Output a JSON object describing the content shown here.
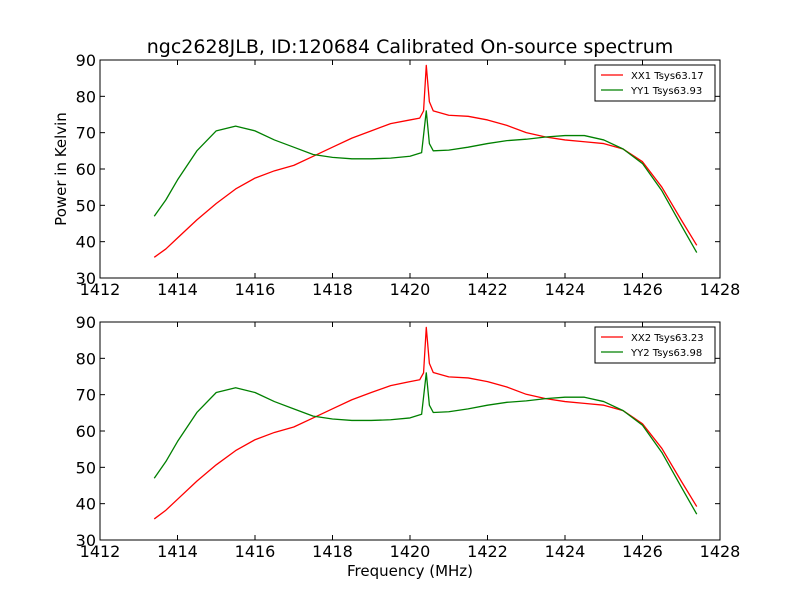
{
  "figure": {
    "title": "ngc2628JLB, ID:120684 Calibrated On-source spectrum"
  },
  "chart_data": [
    {
      "type": "line",
      "ylabel": "Power in Kelvin",
      "xlabel": "",
      "xlim": [
        1412,
        1428
      ],
      "ylim": [
        30,
        90
      ],
      "xticks": [
        "1412",
        "1414",
        "1416",
        "1418",
        "1420",
        "1422",
        "1424",
        "1426",
        "1428"
      ],
      "yticks": [
        "30",
        "40",
        "50",
        "60",
        "70",
        "80",
        "90"
      ],
      "legend_position": "top-right",
      "series": [
        {
          "name": "XX1 Tsys63.17",
          "color": "#ff0000",
          "points": [
            [
              1413.4,
              35.7
            ],
            [
              1413.7,
              38.0
            ],
            [
              1414.0,
              41.0
            ],
            [
              1414.5,
              46.0
            ],
            [
              1415.0,
              50.5
            ],
            [
              1415.5,
              54.5
            ],
            [
              1416.0,
              57.5
            ],
            [
              1416.5,
              59.5
            ],
            [
              1417.0,
              61.0
            ],
            [
              1417.5,
              63.5
            ],
            [
              1418.0,
              66.0
            ],
            [
              1418.5,
              68.5
            ],
            [
              1419.0,
              70.5
            ],
            [
              1419.5,
              72.5
            ],
            [
              1420.0,
              73.5
            ],
            [
              1420.25,
              74.0
            ],
            [
              1420.35,
              76.0
            ],
            [
              1420.42,
              88.5
            ],
            [
              1420.5,
              78.5
            ],
            [
              1420.6,
              76.0
            ],
            [
              1421.0,
              74.8
            ],
            [
              1421.5,
              74.5
            ],
            [
              1422.0,
              73.5
            ],
            [
              1422.5,
              72.0
            ],
            [
              1423.0,
              70.0
            ],
            [
              1423.5,
              68.8
            ],
            [
              1424.0,
              68.0
            ],
            [
              1424.5,
              67.5
            ],
            [
              1425.0,
              67.0
            ],
            [
              1425.5,
              65.5
            ],
            [
              1426.0,
              62.0
            ],
            [
              1426.5,
              55.0
            ],
            [
              1427.0,
              46.0
            ],
            [
              1427.4,
              39.0
            ]
          ]
        },
        {
          "name": "YY1 Tsys63.93",
          "color": "#008000",
          "points": [
            [
              1413.4,
              47.0
            ],
            [
              1413.7,
              51.5
            ],
            [
              1414.0,
              57.0
            ],
            [
              1414.5,
              65.0
            ],
            [
              1415.0,
              70.5
            ],
            [
              1415.5,
              71.8
            ],
            [
              1416.0,
              70.5
            ],
            [
              1416.5,
              68.0
            ],
            [
              1417.0,
              66.0
            ],
            [
              1417.5,
              64.0
            ],
            [
              1418.0,
              63.2
            ],
            [
              1418.5,
              62.8
            ],
            [
              1419.0,
              62.8
            ],
            [
              1419.5,
              63.0
            ],
            [
              1420.0,
              63.5
            ],
            [
              1420.3,
              64.5
            ],
            [
              1420.42,
              76.0
            ],
            [
              1420.5,
              67.0
            ],
            [
              1420.6,
              65.0
            ],
            [
              1421.0,
              65.2
            ],
            [
              1421.5,
              66.0
            ],
            [
              1422.0,
              67.0
            ],
            [
              1422.5,
              67.8
            ],
            [
              1423.0,
              68.2
            ],
            [
              1423.5,
              68.8
            ],
            [
              1424.0,
              69.2
            ],
            [
              1424.5,
              69.2
            ],
            [
              1425.0,
              68.0
            ],
            [
              1425.5,
              65.5
            ],
            [
              1426.0,
              61.5
            ],
            [
              1426.5,
              54.0
            ],
            [
              1427.0,
              44.5
            ],
            [
              1427.4,
              37.0
            ]
          ]
        }
      ]
    },
    {
      "type": "line",
      "ylabel": "",
      "xlabel": "Frequency (MHz)",
      "xlim": [
        1412,
        1428
      ],
      "ylim": [
        30,
        90
      ],
      "xticks": [
        "1412",
        "1414",
        "1416",
        "1418",
        "1420",
        "1422",
        "1424",
        "1426",
        "1428"
      ],
      "yticks": [
        "30",
        "40",
        "50",
        "60",
        "70",
        "80",
        "90"
      ],
      "legend_position": "top-right",
      "series": [
        {
          "name": "XX2 Tsys63.23",
          "color": "#ff0000",
          "points": [
            [
              1413.4,
              35.8
            ],
            [
              1413.7,
              38.2
            ],
            [
              1414.0,
              41.2
            ],
            [
              1414.5,
              46.2
            ],
            [
              1415.0,
              50.7
            ],
            [
              1415.5,
              54.6
            ],
            [
              1416.0,
              57.6
            ],
            [
              1416.5,
              59.6
            ],
            [
              1417.0,
              61.1
            ],
            [
              1417.5,
              63.6
            ],
            [
              1418.0,
              66.1
            ],
            [
              1418.5,
              68.6
            ],
            [
              1419.0,
              70.6
            ],
            [
              1419.5,
              72.5
            ],
            [
              1420.0,
              73.6
            ],
            [
              1420.25,
              74.1
            ],
            [
              1420.35,
              76.0
            ],
            [
              1420.42,
              88.5
            ],
            [
              1420.5,
              78.6
            ],
            [
              1420.6,
              76.1
            ],
            [
              1421.0,
              74.9
            ],
            [
              1421.5,
              74.6
            ],
            [
              1422.0,
              73.6
            ],
            [
              1422.5,
              72.1
            ],
            [
              1423.0,
              70.1
            ],
            [
              1423.5,
              68.9
            ],
            [
              1424.0,
              68.1
            ],
            [
              1424.5,
              67.6
            ],
            [
              1425.0,
              67.1
            ],
            [
              1425.5,
              65.6
            ],
            [
              1426.0,
              62.0
            ],
            [
              1426.5,
              55.2
            ],
            [
              1427.0,
              46.2
            ],
            [
              1427.4,
              39.2
            ]
          ]
        },
        {
          "name": "YY2 Tsys63.98",
          "color": "#008000",
          "points": [
            [
              1413.4,
              47.0
            ],
            [
              1413.7,
              51.6
            ],
            [
              1414.0,
              57.1
            ],
            [
              1414.5,
              65.1
            ],
            [
              1415.0,
              70.6
            ],
            [
              1415.5,
              71.9
            ],
            [
              1416.0,
              70.6
            ],
            [
              1416.5,
              68.1
            ],
            [
              1417.0,
              66.1
            ],
            [
              1417.5,
              64.1
            ],
            [
              1418.0,
              63.3
            ],
            [
              1418.5,
              62.9
            ],
            [
              1419.0,
              62.9
            ],
            [
              1419.5,
              63.1
            ],
            [
              1420.0,
              63.6
            ],
            [
              1420.3,
              64.6
            ],
            [
              1420.42,
              76.0
            ],
            [
              1420.5,
              67.1
            ],
            [
              1420.6,
              65.1
            ],
            [
              1421.0,
              65.3
            ],
            [
              1421.5,
              66.1
            ],
            [
              1422.0,
              67.1
            ],
            [
              1422.5,
              67.9
            ],
            [
              1423.0,
              68.3
            ],
            [
              1423.5,
              68.9
            ],
            [
              1424.0,
              69.3
            ],
            [
              1424.5,
              69.3
            ],
            [
              1425.0,
              68.1
            ],
            [
              1425.5,
              65.6
            ],
            [
              1426.0,
              61.6
            ],
            [
              1426.5,
              54.1
            ],
            [
              1427.0,
              44.6
            ],
            [
              1427.4,
              37.1
            ]
          ]
        }
      ]
    }
  ]
}
